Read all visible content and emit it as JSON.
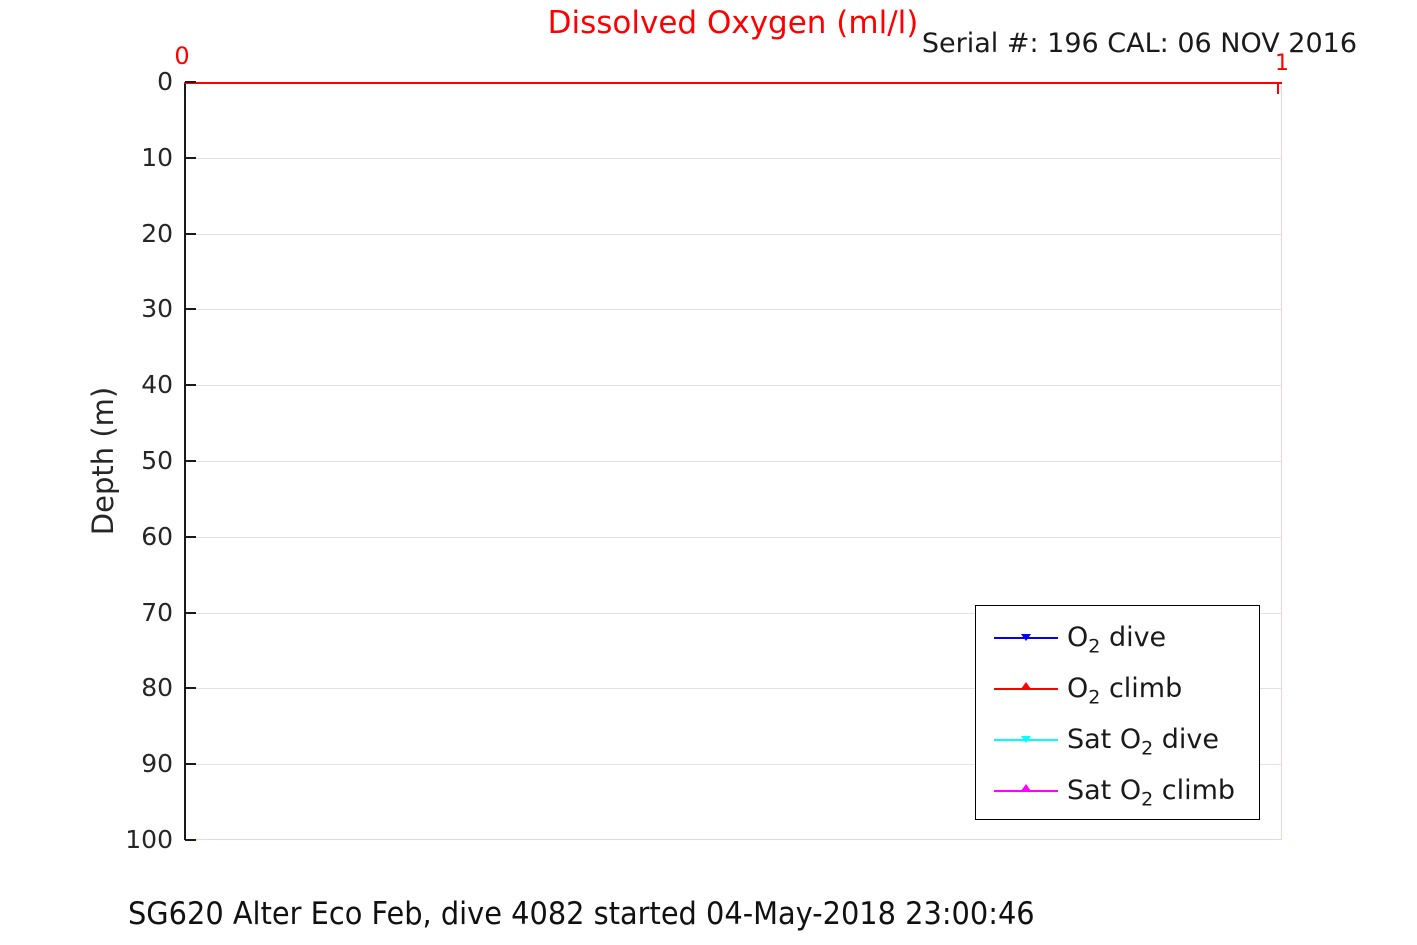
{
  "title": {
    "text": "Dissolved Oxygen (ml/l)",
    "color": "#ff0000"
  },
  "annotations": {
    "serial": "Serial #: 196  CAL: 06 NOV 2016",
    "footer": "SG620 Alter Eco Feb, dive 4082 started 04-May-2018 23:00:46"
  },
  "chart_data": {
    "type": "line",
    "title": "Dissolved Oxygen (ml/l)",
    "x_axis": {
      "label": "",
      "position": "top",
      "color": "#ff0000",
      "range": [
        0,
        1
      ],
      "ticks": [
        0,
        1
      ],
      "tick_labels": [
        "0",
        "1"
      ]
    },
    "y_axis": {
      "label": "Depth (m)",
      "color": "#262626",
      "range": [
        0,
        100
      ],
      "direction": "reversed (depth increases downward)",
      "ticks": [
        0,
        10,
        20,
        30,
        40,
        50,
        60,
        70,
        80,
        90,
        100
      ]
    },
    "grid": "horizontal gridlines at every 10 m, light gray",
    "box_colors": {
      "top_spine": "#ff0000",
      "left_spine": "#1a1a1a",
      "right_bottom_spines": "#f1d4d4",
      "gridline": "#e2e2e2"
    },
    "legend": {
      "position": "inside lower right",
      "entries": [
        {
          "label_pre": "O",
          "label_sub": "2",
          "label_post": " dive",
          "color": "#0000ff",
          "marker": "triangle-down"
        },
        {
          "label_pre": "O",
          "label_sub": "2",
          "label_post": " climb",
          "color": "#ff0000",
          "marker": "triangle-up"
        },
        {
          "label_pre": "Sat O",
          "label_sub": "2",
          "label_post": " dive",
          "color": "#00ffff",
          "marker": "triangle-down"
        },
        {
          "label_pre": "Sat O",
          "label_sub": "2",
          "label_post": " climb",
          "color": "#ff00ff",
          "marker": "triangle-up"
        }
      ]
    },
    "series": [
      {
        "name": "O2 dive",
        "color": "#0000ff",
        "marker": "triangle-down",
        "x": [],
        "depth": []
      },
      {
        "name": "O2 climb",
        "color": "#ff0000",
        "marker": "triangle-up",
        "x": [
          0,
          1
        ],
        "depth": [
          0,
          0
        ]
      },
      {
        "name": "Sat O2 dive",
        "color": "#00ffff",
        "marker": "triangle-down",
        "x": [],
        "depth": []
      },
      {
        "name": "Sat O2 climb",
        "color": "#ff00ff",
        "marker": "triangle-up",
        "x": [],
        "depth": []
      }
    ],
    "note": "Plot area is empty: the only visible trace coincides with the red 0 m top axis line; dive just started."
  }
}
